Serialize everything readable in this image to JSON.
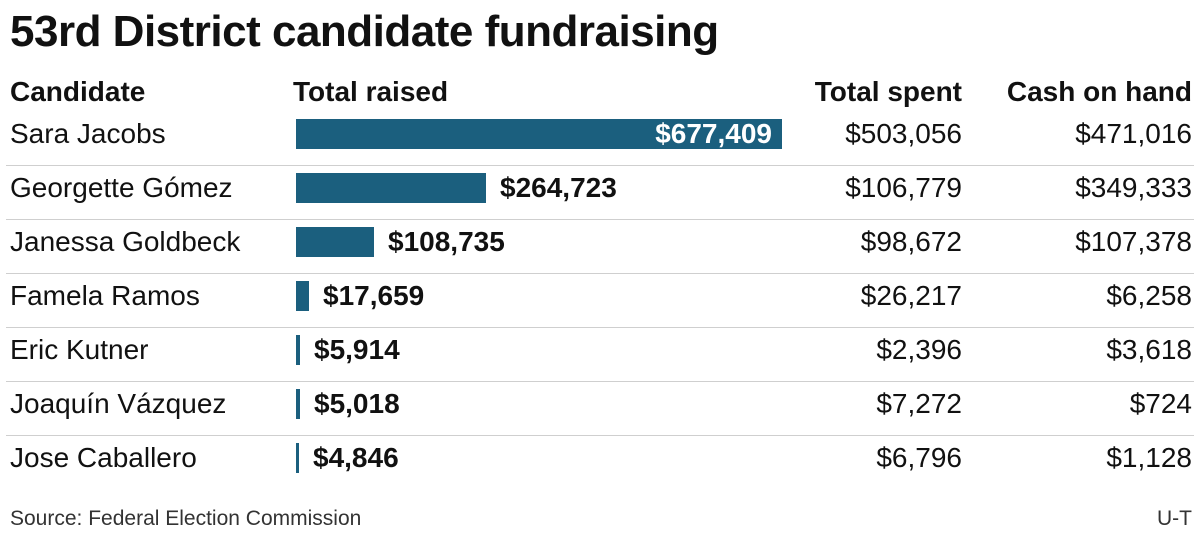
{
  "title": "53rd District candidate fundraising",
  "headers": {
    "candidate": "Candidate",
    "raised": "Total raised",
    "spent": "Total spent",
    "cash": "Cash on hand"
  },
  "source": "Source: Federal Election Commission",
  "credit": "U-T",
  "colors": {
    "bar": "#1b5f7e",
    "text": "#111111",
    "divider": "#cfcfcf"
  },
  "chart_data": {
    "type": "bar",
    "orientation": "horizontal",
    "title": "53rd District candidate fundraising",
    "categories": [
      "Sara Jacobs",
      "Georgette Gómez",
      "Janessa Goldbeck",
      "Famela Ramos",
      "Eric Kutner",
      "Joaquín Vázquez",
      "Jose Caballero"
    ],
    "series": [
      {
        "name": "Total raised",
        "values": [
          677409,
          264723,
          108735,
          17659,
          5914,
          5018,
          4846
        ]
      }
    ],
    "value_labels": [
      "$677,409",
      "$264,723",
      "$108,735",
      "$17,659",
      "$5,914",
      "$5,018",
      "$4,846"
    ],
    "table_columns": {
      "Total spent": [
        "$503,056",
        "$106,779",
        "$98,672",
        "$26,217",
        "$2,396",
        "$7,272",
        "$6,796"
      ],
      "Cash on hand": [
        "$471,016",
        "$349,333",
        "$107,378",
        "$6,258",
        "$3,618",
        "$724",
        "$1,128"
      ]
    },
    "xlim": [
      0,
      677409
    ],
    "grid": false,
    "legend": "none"
  }
}
